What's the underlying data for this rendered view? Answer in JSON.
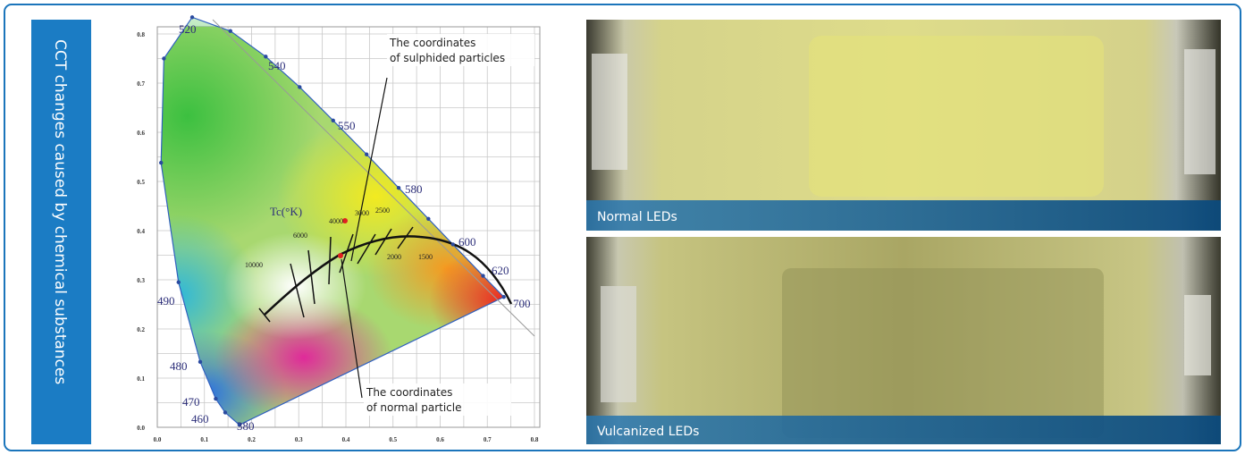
{
  "sidebar": {
    "title": "CCT changes caused by chemical substances"
  },
  "diagram": {
    "x_ticks": [
      "0.0",
      "0.1",
      "0.2",
      "0.3",
      "0.4",
      "0.5",
      "0.6",
      "0.7",
      "0.8"
    ],
    "y_ticks": [
      "0.0",
      "0.1",
      "0.2",
      "0.3",
      "0.4",
      "0.5",
      "0.6",
      "0.7",
      "0.8"
    ],
    "wavelengths": [
      "520",
      "540",
      "550",
      "580",
      "600",
      "620",
      "700",
      "490",
      "480",
      "470",
      "460",
      "380"
    ],
    "temperature_axis": "Tc(°K)",
    "temperatures": [
      "10000",
      "6000",
      "4000",
      "3000",
      "2500",
      "2000",
      "1500"
    ],
    "annotations": [
      {
        "lines": [
          "The coordinates",
          "of sulphided particles"
        ]
      },
      {
        "lines": [
          "The coordinates",
          "of normal particle"
        ]
      }
    ]
  },
  "photos": [
    {
      "caption": "Normal LEDs"
    },
    {
      "caption": "Vulcanized LEDs"
    }
  ]
}
